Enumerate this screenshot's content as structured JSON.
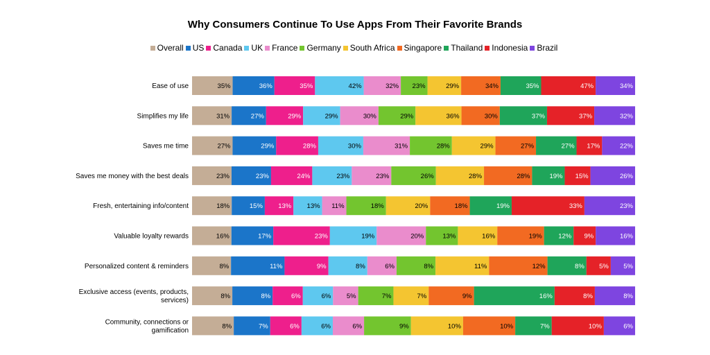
{
  "chart_data": {
    "type": "bar",
    "orientation": "horizontal",
    "stacked": true,
    "title": "Why Consumers Continue To Use Apps From Their Favorite Brands",
    "legend_position": "top",
    "grid": false,
    "categories": [
      "Ease of use",
      "Simplifies my life",
      "Saves me time",
      "Saves me money with the best deals",
      "Fresh, entertaining info/content",
      "Valuable loyalty rewards",
      "Personalized content & reminders",
      "Exclusive access (events, products, services)",
      "Community, connections or gamification"
    ],
    "category_lines": [
      [
        "Ease of use"
      ],
      [
        "Simplifies my life"
      ],
      [
        "Saves me time"
      ],
      [
        "Saves me money with the best deals"
      ],
      [
        "Fresh, entertaining info/content"
      ],
      [
        "Valuable loyalty rewards"
      ],
      [
        "Personalized content & reminders"
      ],
      [
        "Exclusive access (events, products,",
        "services)"
      ],
      [
        "Community, connections or",
        "gamification"
      ]
    ],
    "series": [
      {
        "name": "Overall",
        "color": "#c4ad96",
        "label_color": "#000000",
        "values": [
          35,
          31,
          27,
          23,
          18,
          16,
          8,
          8,
          8
        ]
      },
      {
        "name": "US",
        "color": "#1b75c9",
        "label_color": "#ffffff",
        "values": [
          36,
          27,
          29,
          23,
          15,
          17,
          11,
          8,
          7
        ]
      },
      {
        "name": "Canada",
        "color": "#ee1f8c",
        "label_color": "#ffffff",
        "values": [
          35,
          29,
          28,
          24,
          13,
          23,
          9,
          6,
          6
        ]
      },
      {
        "name": "UK",
        "color": "#5ec8ef",
        "label_color": "#000000",
        "values": [
          42,
          29,
          30,
          23,
          13,
          19,
          8,
          6,
          6
        ]
      },
      {
        "name": "France",
        "color": "#ea8ccc",
        "label_color": "#000000",
        "values": [
          32,
          30,
          31,
          23,
          11,
          20,
          6,
          5,
          6
        ]
      },
      {
        "name": "Germany",
        "color": "#73c52f",
        "label_color": "#000000",
        "values": [
          23,
          29,
          28,
          26,
          18,
          13,
          8,
          7,
          9
        ]
      },
      {
        "name": "South Africa",
        "color": "#f4c531",
        "label_color": "#000000",
        "values": [
          29,
          36,
          29,
          28,
          20,
          16,
          11,
          7,
          10
        ]
      },
      {
        "name": "Singapore",
        "color": "#f26a22",
        "label_color": "#000000",
        "values": [
          34,
          30,
          27,
          28,
          18,
          19,
          12,
          9,
          10
        ]
      },
      {
        "name": "Thailand",
        "color": "#1fa55a",
        "label_color": "#ffffff",
        "values": [
          35,
          37,
          27,
          19,
          19,
          12,
          8,
          16,
          7
        ]
      },
      {
        "name": "Indonesia",
        "color": "#e52228",
        "label_color": "#ffffff",
        "values": [
          47,
          37,
          17,
          15,
          33,
          9,
          5,
          8,
          10
        ]
      },
      {
        "name": "Brazil",
        "color": "#7e45e0",
        "label_color": "#ffffff",
        "values": [
          34,
          32,
          22,
          26,
          23,
          16,
          5,
          8,
          6
        ]
      }
    ],
    "value_suffix": "%"
  }
}
